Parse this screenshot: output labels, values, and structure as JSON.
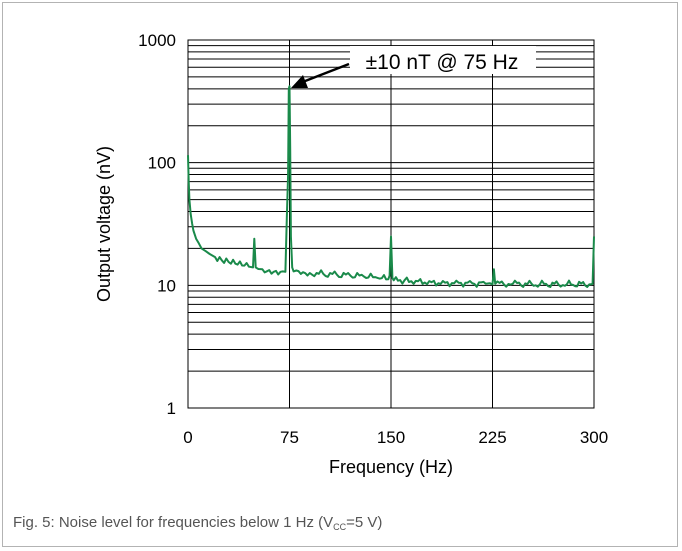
{
  "chart_data": {
    "type": "line",
    "xlabel": "Frequency (Hz)",
    "ylabel": "Output voltage (nV)",
    "x_ticks": [
      "0",
      "75",
      "150",
      "225",
      "300"
    ],
    "y_ticks": [
      "1",
      "10",
      "100",
      "1000"
    ],
    "xlim": [
      0,
      300
    ],
    "ylim": [
      1,
      1000
    ],
    "y_scale": "log",
    "grid": true,
    "series_color": "#1a8a4a",
    "annotation": {
      "text": "±10 nT @ 75 Hz",
      "x": 75,
      "y": 420
    },
    "series": [
      {
        "x": [
          0,
          0.5,
          1,
          2,
          3,
          4,
          6,
          8,
          10,
          13,
          16,
          20,
          25,
          30,
          35,
          40,
          45,
          48,
          49,
          50,
          51,
          52,
          55,
          60,
          65,
          70,
          72,
          73,
          74,
          74.5,
          75,
          75.5,
          76,
          77,
          78,
          80,
          85,
          90,
          100,
          110,
          120,
          130,
          140,
          148,
          149,
          150,
          151,
          152,
          160,
          170,
          180,
          190,
          200,
          210,
          220,
          223,
          224,
          225,
          226,
          227,
          240,
          260,
          280,
          298,
          299,
          300
        ],
        "y": [
          115,
          70,
          50,
          38,
          32,
          28,
          24,
          22,
          20,
          19,
          18,
          17,
          16,
          15.5,
          15,
          14.5,
          14.2,
          14,
          24,
          14,
          13.8,
          13.6,
          13.5,
          13.3,
          13.1,
          13,
          12.9,
          35,
          80,
          400,
          420,
          130,
          25,
          14,
          13,
          13.2,
          12.8,
          12.6,
          12.4,
          12.2,
          12,
          11.8,
          11.5,
          11.2,
          12,
          25,
          11.5,
          11,
          11,
          10.8,
          10.6,
          10.5,
          10.5,
          10.4,
          10.3,
          10.4,
          10.3,
          10.2,
          13.5,
          10.3,
          10.3,
          10.2,
          10.2,
          10.2,
          10.3,
          25
        ]
      }
    ]
  },
  "caption": {
    "prefix": "Fig. 5: Noise level for frequencies below 1 Hz (V",
    "subscript": "CC",
    "suffix": "=5 V)"
  }
}
